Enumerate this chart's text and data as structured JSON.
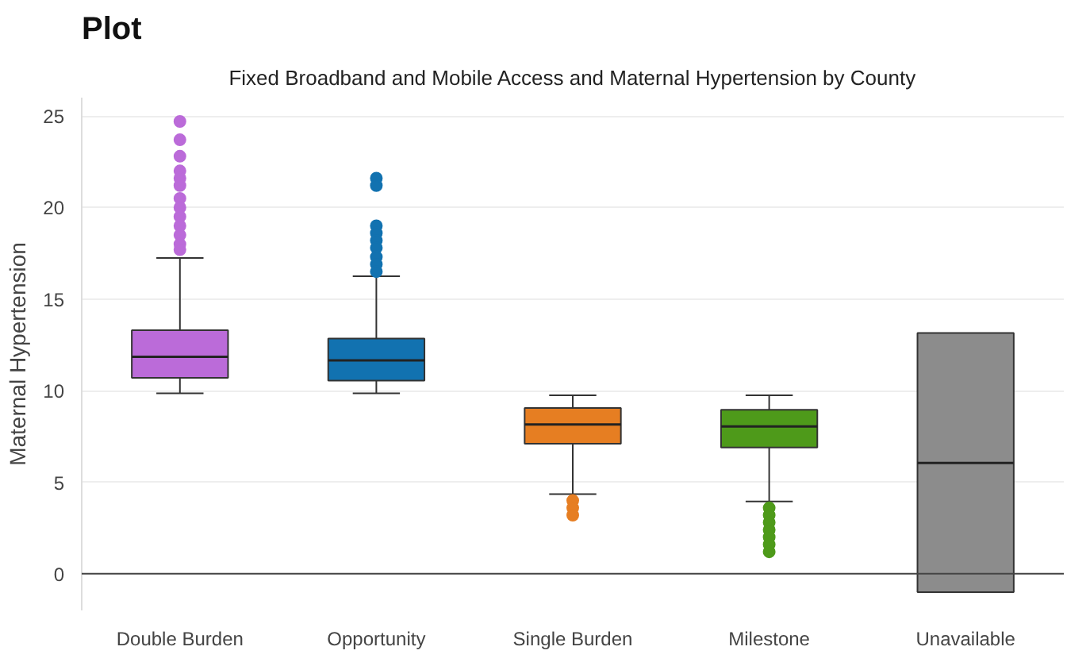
{
  "chart_data": {
    "type": "box",
    "title": "Plot",
    "subtitle": "Fixed Broadband and Mobile Access and Maternal Hypertension by County",
    "ylabel": "Maternal Hypertension",
    "categories": [
      "Double Burden",
      "Opportunity",
      "Single Burden",
      "Milestone",
      "Unavailable"
    ],
    "colors": [
      "#bb6bd9",
      "#1272b0",
      "#e67e22",
      "#4e9a1a",
      "#8c8c8c"
    ],
    "boxes": [
      {
        "low": 9.85,
        "q1": 10.7,
        "median": 11.85,
        "q3": 13.3,
        "high": 17.25,
        "outliers": [
          24.7,
          23.7,
          22.8,
          22.0,
          21.6,
          21.2,
          20.5,
          20.0,
          19.5,
          19.0,
          18.5,
          18.0,
          17.7
        ]
      },
      {
        "low": 9.85,
        "q1": 10.55,
        "median": 11.65,
        "q3": 12.85,
        "high": 16.25,
        "outliers": [
          21.6,
          21.2,
          19.0,
          18.6,
          18.2,
          17.8,
          17.3,
          16.9,
          16.5
        ]
      },
      {
        "low": 4.35,
        "q1": 7.1,
        "median": 8.15,
        "q3": 9.05,
        "high": 9.75,
        "outliers": [
          4.0,
          3.6,
          3.2
        ]
      },
      {
        "low": 3.95,
        "q1": 6.9,
        "median": 8.05,
        "q3": 8.95,
        "high": 9.75,
        "outliers": [
          3.6,
          3.2,
          2.8,
          2.4,
          2.0,
          1.6,
          1.2
        ]
      },
      {
        "low": -1.0,
        "q1": -1.0,
        "median": 6.05,
        "q3": 13.15,
        "high": 13.15
      }
    ],
    "ylim": [
      -2,
      26
    ],
    "yticks": [
      0,
      5,
      10,
      15,
      20,
      25
    ],
    "grid": "y",
    "ref_lines": [
      {
        "axis": "y",
        "value": 0,
        "color": "#444444"
      }
    ]
  }
}
